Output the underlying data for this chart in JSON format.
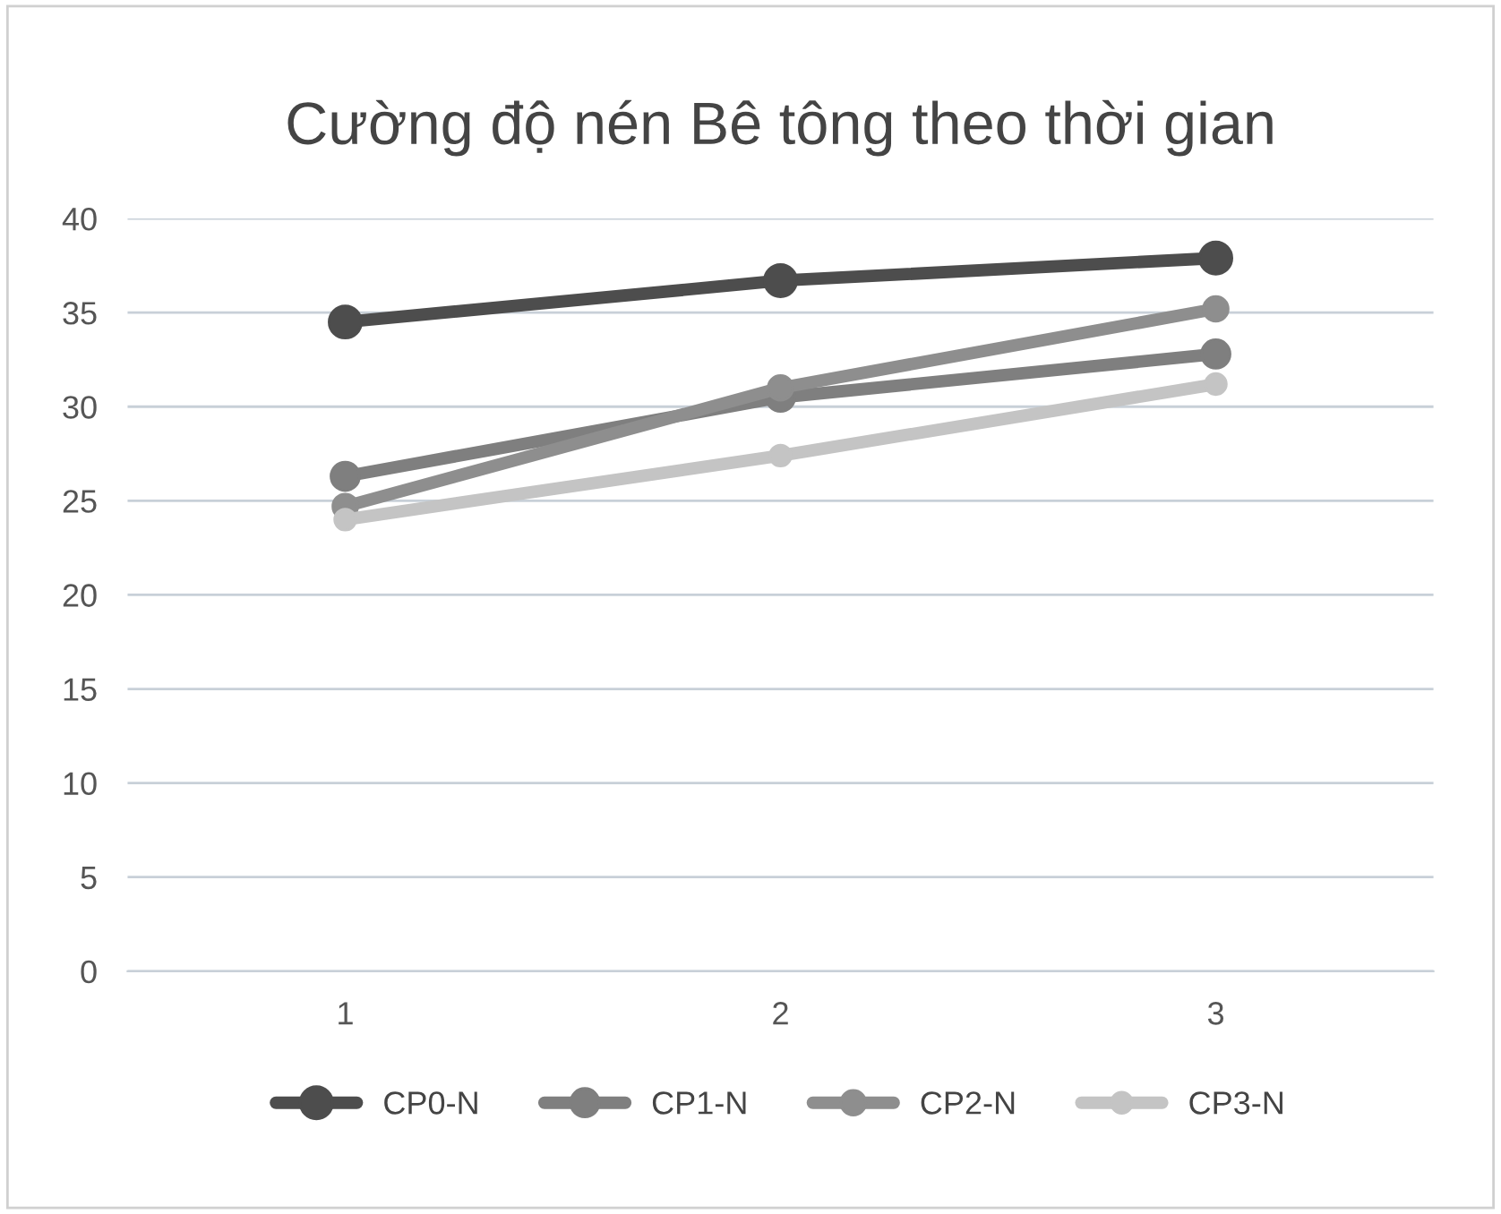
{
  "chart_data": {
    "type": "line",
    "title": "Cường độ nén Bê tông theo thời gian",
    "categories": [
      "1",
      "2",
      "3"
    ],
    "series": [
      {
        "name": "CP0-N",
        "color": "#4d4d4d",
        "values": [
          34.5,
          36.7,
          37.9
        ]
      },
      {
        "name": "CP1-N",
        "color": "#7f7f7f",
        "values": [
          26.3,
          30.5,
          32.8
        ]
      },
      {
        "name": "CP2-N",
        "color": "#8e8e8e",
        "values": [
          24.7,
          31.0,
          35.2
        ]
      },
      {
        "name": "CP3-N",
        "color": "#c4c4c4",
        "values": [
          24.0,
          27.4,
          31.2
        ]
      }
    ],
    "ylim": [
      0,
      40
    ],
    "yticks": [
      0,
      5,
      10,
      15,
      20,
      25,
      30,
      35,
      40
    ],
    "grid": "y",
    "legend": "bottom",
    "marker": "circle",
    "line_style": "solid"
  }
}
